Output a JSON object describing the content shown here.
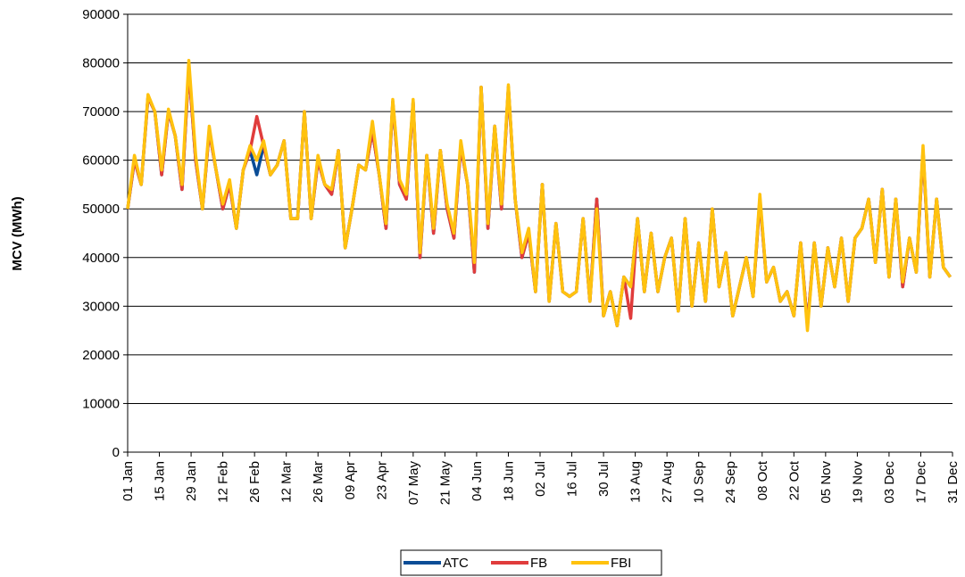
{
  "chart_data": {
    "type": "line",
    "y_label": "MCV (MWh)",
    "x": [
      0,
      3,
      6,
      9,
      12,
      15,
      18,
      21,
      24,
      27,
      30,
      33,
      36,
      39,
      42,
      45,
      48,
      51,
      54,
      57,
      60,
      63,
      66,
      69,
      72,
      75,
      78,
      81,
      84,
      87,
      90,
      93,
      96,
      99,
      102,
      105,
      108,
      111,
      114,
      117,
      120,
      123,
      126,
      129,
      132,
      135,
      138,
      141,
      144,
      147,
      150,
      153,
      156,
      159,
      162,
      165,
      168,
      171,
      174,
      177,
      180,
      183,
      186,
      189,
      192,
      195,
      198,
      201,
      204,
      207,
      210,
      213,
      216,
      219,
      222,
      225,
      228,
      231,
      234,
      237,
      240,
      243,
      246,
      249,
      252,
      255,
      258,
      261,
      264,
      267,
      270,
      273,
      276,
      279,
      282,
      285,
      288,
      291,
      294,
      297,
      300,
      303,
      306,
      309,
      312,
      315,
      318,
      321,
      324,
      327,
      330,
      333,
      336,
      339,
      342,
      345,
      348,
      351,
      354,
      357,
      360,
      363
    ],
    "series": [
      {
        "name": "ATC",
        "color": "#0a4d96",
        "values": [
          50000,
          60000,
          55000,
          73000,
          70000,
          57000,
          70000,
          65000,
          54000,
          79000,
          60000,
          50000,
          66000,
          58000,
          50000,
          55000,
          46000,
          58000,
          62000,
          57000,
          63000,
          57000,
          59000,
          64000,
          48000,
          48000,
          70000,
          48000,
          60000,
          55000,
          53000,
          62000,
          42000,
          50000,
          59000,
          58000,
          66000,
          57000,
          46000,
          72000,
          55000,
          52000,
          72000,
          40000,
          61000,
          45000,
          62000,
          50000,
          44000,
          63000,
          55000,
          37000,
          75000,
          46000,
          67000,
          50000,
          75000,
          52000,
          40000,
          45000,
          33000,
          55000,
          31000,
          47000,
          33000,
          32000,
          33000,
          48000,
          31000,
          52000,
          28000,
          33000,
          26000,
          36000,
          34000,
          48000,
          33000,
          45000,
          33000,
          40000,
          44000,
          29000,
          48000,
          30000,
          43000,
          31000,
          50000,
          34000,
          41000,
          28000,
          34000,
          40000,
          32000,
          52000,
          35000,
          38000,
          31000,
          33000,
          28000,
          43000,
          26000,
          43000,
          30000,
          42000,
          34000,
          44000,
          31000,
          44000,
          46000,
          52000,
          39000,
          54000,
          36000,
          52000,
          34000,
          44000,
          37000,
          62000,
          36000,
          52000,
          38000,
          36000
        ]
      },
      {
        "name": "FB",
        "color": "#e03c3c",
        "values": [
          50000,
          60000,
          55000,
          73000,
          70000,
          57000,
          70000,
          65000,
          54000,
          79000,
          60000,
          50000,
          66000,
          58000,
          50000,
          55000,
          46000,
          58000,
          62000,
          69000,
          63000,
          57000,
          59000,
          64000,
          48000,
          48000,
          70000,
          48000,
          60000,
          55000,
          53000,
          62000,
          42000,
          50000,
          59000,
          58000,
          66000,
          57000,
          46000,
          72000,
          55000,
          52000,
          72000,
          40000,
          61000,
          45000,
          62000,
          50000,
          44000,
          63000,
          55000,
          37000,
          75000,
          46000,
          67000,
          50000,
          75000,
          52000,
          40000,
          45000,
          33000,
          55000,
          31000,
          47000,
          33000,
          32000,
          33000,
          48000,
          31000,
          52000,
          28000,
          33000,
          26000,
          36000,
          27500,
          48000,
          33000,
          45000,
          33000,
          40000,
          44000,
          29000,
          48000,
          30000,
          43000,
          31000,
          50000,
          34000,
          41000,
          28000,
          34000,
          40000,
          32000,
          52000,
          35000,
          38000,
          31000,
          33000,
          28000,
          43000,
          26000,
          43000,
          30000,
          42000,
          34000,
          44000,
          31000,
          44000,
          46000,
          52000,
          39000,
          54000,
          36000,
          52000,
          34000,
          44000,
          37000,
          62000,
          36000,
          52000,
          38000,
          36000
        ]
      },
      {
        "name": "FBI",
        "color": "#ffc20e",
        "values": [
          50000,
          61000,
          55000,
          73500,
          70000,
          58000,
          70500,
          65000,
          55000,
          80500,
          61000,
          50000,
          67000,
          58000,
          51000,
          56000,
          46000,
          58000,
          63000,
          60000,
          64000,
          57000,
          59000,
          64000,
          48000,
          48000,
          70000,
          48000,
          61000,
          55000,
          54000,
          62000,
          42000,
          50000,
          59000,
          58000,
          68000,
          57000,
          47000,
          72500,
          56000,
          53000,
          72500,
          41000,
          61000,
          46000,
          62000,
          51000,
          45000,
          64000,
          55000,
          39000,
          75000,
          47000,
          67000,
          51000,
          75500,
          52000,
          41000,
          46000,
          33000,
          55000,
          31000,
          47000,
          33000,
          32000,
          33000,
          48000,
          31000,
          50000,
          28000,
          33000,
          26000,
          36000,
          34000,
          48000,
          33000,
          45000,
          33000,
          40000,
          44000,
          29000,
          48000,
          30000,
          43000,
          31000,
          50000,
          34000,
          41000,
          28000,
          34000,
          40000,
          32000,
          53000,
          35000,
          38000,
          31000,
          33000,
          28000,
          43000,
          25000,
          43000,
          30000,
          42000,
          34000,
          44000,
          31000,
          44000,
          46000,
          52000,
          39000,
          54000,
          36000,
          52000,
          35000,
          44000,
          37000,
          63000,
          36000,
          52000,
          38000,
          36000
        ]
      }
    ],
    "xlim": [
      0,
      364
    ],
    "xticks": [
      {
        "value": 0,
        "label": "01 Jan"
      },
      {
        "value": 14,
        "label": "15 Jan"
      },
      {
        "value": 28,
        "label": "29 Jan"
      },
      {
        "value": 42,
        "label": "12 Feb"
      },
      {
        "value": 56,
        "label": "26 Feb"
      },
      {
        "value": 70,
        "label": "12 Mar"
      },
      {
        "value": 84,
        "label": "26 Mar"
      },
      {
        "value": 98,
        "label": "09 Apr"
      },
      {
        "value": 112,
        "label": "23 Apr"
      },
      {
        "value": 126,
        "label": "07 May"
      },
      {
        "value": 140,
        "label": "21 May"
      },
      {
        "value": 154,
        "label": "04 Jun"
      },
      {
        "value": 168,
        "label": "18 Jun"
      },
      {
        "value": 182,
        "label": "02 Jul"
      },
      {
        "value": 196,
        "label": "16 Jul"
      },
      {
        "value": 210,
        "label": "30 Jul"
      },
      {
        "value": 224,
        "label": "13 Aug"
      },
      {
        "value": 238,
        "label": "27 Aug"
      },
      {
        "value": 252,
        "label": "10 Sep"
      },
      {
        "value": 266,
        "label": "24 Sep"
      },
      {
        "value": 280,
        "label": "08 Oct"
      },
      {
        "value": 294,
        "label": "22 Oct"
      },
      {
        "value": 308,
        "label": "05 Nov"
      },
      {
        "value": 322,
        "label": "19 Nov"
      },
      {
        "value": 336,
        "label": "03 Dec"
      },
      {
        "value": 350,
        "label": "17 Dec"
      },
      {
        "value": 364,
        "label": "31 Dec"
      }
    ],
    "ylim": [
      0,
      90000
    ],
    "yticks": [
      0,
      10000,
      20000,
      30000,
      40000,
      50000,
      60000,
      70000,
      80000,
      90000
    ],
    "grid": true,
    "legend": "bottom"
  }
}
